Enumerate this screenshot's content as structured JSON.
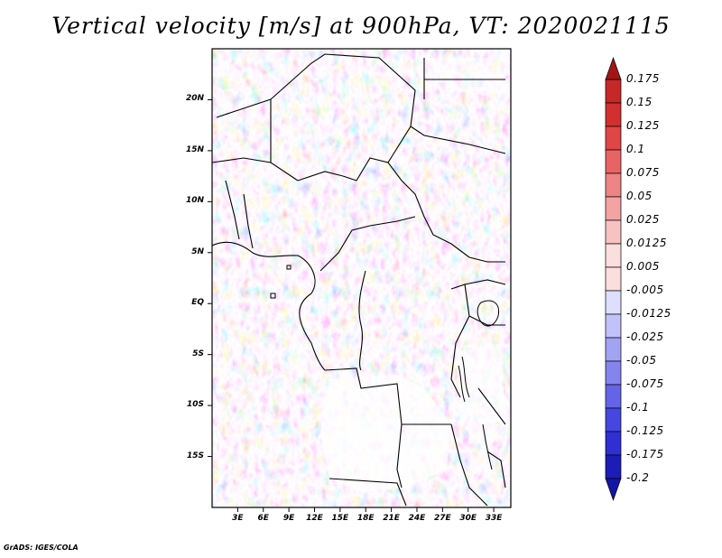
{
  "title": "Vertical velocity [m/s] at 900hPa, VT: 2020021115",
  "credit": "GrADS: IGES/COLA",
  "map": {
    "lon_range": [
      0,
      35
    ],
    "lat_range": [
      -20,
      25
    ],
    "lat_ticks": [
      {
        "value": 20,
        "label": "20N"
      },
      {
        "value": 15,
        "label": "15N"
      },
      {
        "value": 10,
        "label": "10N"
      },
      {
        "value": 5,
        "label": "5N"
      },
      {
        "value": 0,
        "label": "EQ"
      },
      {
        "value": -5,
        "label": "5S"
      },
      {
        "value": -10,
        "label": "10S"
      },
      {
        "value": -15,
        "label": "15S"
      }
    ],
    "lon_ticks": [
      {
        "value": 3,
        "label": "3E"
      },
      {
        "value": 6,
        "label": "6E"
      },
      {
        "value": 9,
        "label": "9E"
      },
      {
        "value": 12,
        "label": "12E"
      },
      {
        "value": 15,
        "label": "15E"
      },
      {
        "value": 18,
        "label": "18E"
      },
      {
        "value": 21,
        "label": "21E"
      },
      {
        "value": 24,
        "label": "24E"
      },
      {
        "value": 27,
        "label": "27E"
      },
      {
        "value": 30,
        "label": "30E"
      },
      {
        "value": 33,
        "label": "33E"
      }
    ]
  },
  "colorbar": {
    "units": "m/s",
    "levels": [
      {
        "label": "0.175",
        "color": "#b71c1c"
      },
      {
        "label": "0.15",
        "color": "#c62828"
      },
      {
        "label": "0.125",
        "color": "#d32f2f"
      },
      {
        "label": "0.1",
        "color": "#e04646"
      },
      {
        "label": "0.075",
        "color": "#e86464"
      },
      {
        "label": "0.05",
        "color": "#ee8484"
      },
      {
        "label": "0.025",
        "color": "#f4a3a3"
      },
      {
        "label": "0.0125",
        "color": "#f8c2c2"
      },
      {
        "label": "0.005",
        "color": "#fbdede"
      },
      {
        "label": "-0.005",
        "color": "#ffffff"
      },
      {
        "label": "-0.0125",
        "color": "#dedeff"
      },
      {
        "label": "-0.025",
        "color": "#c2c2fb"
      },
      {
        "label": "-0.05",
        "color": "#a3a3f4"
      },
      {
        "label": "-0.075",
        "color": "#8484ee"
      },
      {
        "label": "-0.1",
        "color": "#6464e8"
      },
      {
        "label": "-0.125",
        "color": "#4646e0"
      },
      {
        "label": "-0.175",
        "color": "#2f2fd3"
      },
      {
        "label": "-0.2",
        "color": "#1c1cb7"
      }
    ],
    "top_color": "#a31515",
    "bottom_color": "#1515a3"
  }
}
